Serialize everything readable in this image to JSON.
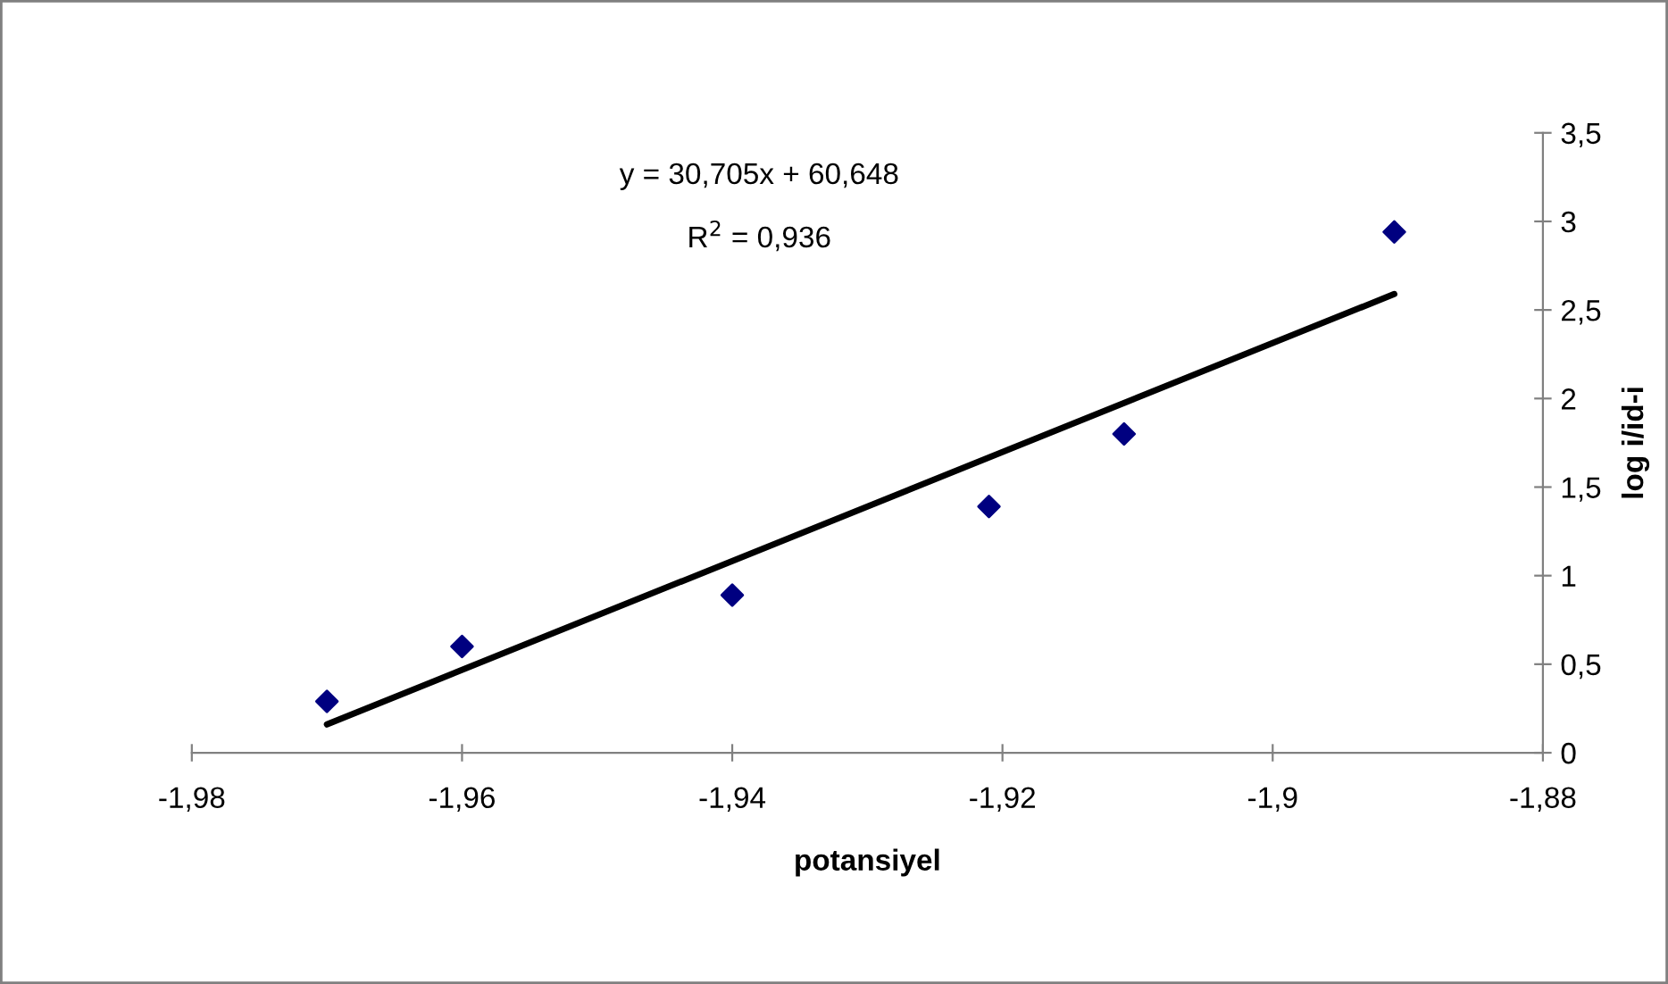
{
  "chart_data": {
    "type": "scatter",
    "xlabel": "potansiyel",
    "ylabel": "log i/id-i",
    "annotations": [
      "y = 30,705x + 60,648",
      "R$^{2}$ = 0,936"
    ],
    "series": [
      {
        "color": "#000080",
        "marker": "diamond",
        "x": [
          -1.97,
          -1.96,
          -1.94,
          -1.921,
          -1.911,
          -1.891
        ],
        "values": [
          0.29,
          0.6,
          0.89,
          1.39,
          1.8,
          2.94
        ]
      },
      {
        "type": "line",
        "color": "#000000",
        "marker": "none",
        "line_style": "solid",
        "x": [
          -1.97,
          -1.891
        ],
        "values": [
          0.16,
          2.59
        ]
      }
    ],
    "xlim": [
      -1.98,
      -1.88
    ],
    "xticks": [
      {
        "value": -1.98,
        "label": "-1,98"
      },
      {
        "value": -1.96,
        "label": "-1,96"
      },
      {
        "value": -1.94,
        "label": "-1,94"
      },
      {
        "value": -1.92,
        "label": "-1,92"
      },
      {
        "value": -1.9,
        "label": "-1,9"
      },
      {
        "value": -1.88,
        "label": "-1,88"
      }
    ],
    "ylim": [
      0,
      3.5
    ],
    "yticks": [
      0,
      {
        "value": 0.5,
        "label": "0,5"
      },
      1,
      {
        "value": 1.5,
        "label": "1,5"
      },
      2,
      {
        "value": 2.5,
        "label": "2,5"
      },
      3,
      {
        "value": 3.5,
        "label": "3,5"
      }
    ],
    "grid": false,
    "legend": false
  }
}
